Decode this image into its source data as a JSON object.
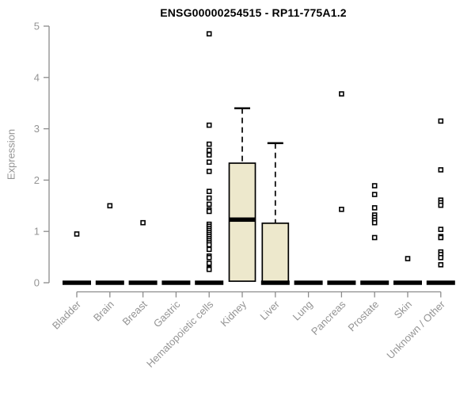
{
  "chart_data": {
    "type": "boxplot",
    "title": "ENSG00000254515 - RP11-775A1.2",
    "xlabel": "",
    "ylabel": "Expression",
    "ylim": [
      0,
      5
    ],
    "yticks": [
      0,
      1,
      2,
      3,
      4,
      5
    ],
    "grid": false,
    "legend": "none",
    "categories": [
      "Bladder",
      "Brain",
      "Breast",
      "Gastric",
      "Hematopoietic cells",
      "Kidney",
      "Liver",
      "Lung",
      "Pancreas",
      "Prostate",
      "Skin",
      "Unknown / Other"
    ],
    "boxes": [
      {
        "category": "Bladder",
        "whisker_low": 0,
        "q1": 0,
        "median": 0,
        "q3": 0,
        "whisker_high": 0,
        "outliers": [
          0.95
        ]
      },
      {
        "category": "Brain",
        "whisker_low": 0,
        "q1": 0,
        "median": 0,
        "q3": 0,
        "whisker_high": 0,
        "outliers": [
          1.5
        ]
      },
      {
        "category": "Breast",
        "whisker_low": 0,
        "q1": 0,
        "median": 0,
        "q3": 0,
        "whisker_high": 0,
        "outliers": [
          1.17
        ]
      },
      {
        "category": "Gastric",
        "whisker_low": 0,
        "q1": 0,
        "median": 0,
        "q3": 0,
        "whisker_high": 0,
        "outliers": []
      },
      {
        "category": "Hematopoietic cells",
        "whisker_low": 0,
        "q1": 0,
        "median": 0,
        "q3": 0,
        "whisker_high": 0,
        "outliers": [
          4.85,
          3.07,
          2.7,
          2.58,
          2.49,
          2.35,
          2.17,
          1.78,
          1.65,
          1.53,
          1.42,
          1.39,
          1.14,
          1.1,
          1.06,
          1.02,
          0.98,
          0.94,
          0.9,
          0.86,
          0.82,
          0.78,
          0.74,
          0.65,
          0.52,
          0.49,
          0.38,
          0.28,
          0.26
        ]
      },
      {
        "category": "Kidney",
        "whisker_low": 0.03,
        "q1": 0.03,
        "median": 1.23,
        "q3": 2.33,
        "whisker_high": 3.4,
        "outliers": []
      },
      {
        "category": "Liver",
        "whisker_low": 0,
        "q1": 0,
        "median": 0,
        "q3": 1.16,
        "whisker_high": 2.72,
        "outliers": []
      },
      {
        "category": "Lung",
        "whisker_low": 0,
        "q1": 0,
        "median": 0,
        "q3": 0,
        "whisker_high": 0,
        "outliers": []
      },
      {
        "category": "Pancreas",
        "whisker_low": 0,
        "q1": 0,
        "median": 0,
        "q3": 0,
        "whisker_high": 0,
        "outliers": [
          3.68,
          1.43
        ]
      },
      {
        "category": "Prostate",
        "whisker_low": 0,
        "q1": 0,
        "median": 0,
        "q3": 0,
        "whisker_high": 0,
        "outliers": [
          1.89,
          1.72,
          1.46,
          1.32,
          1.27,
          1.22,
          1.17,
          0.88
        ]
      },
      {
        "category": "Skin",
        "whisker_low": 0,
        "q1": 0,
        "median": 0,
        "q3": 0,
        "whisker_high": 0,
        "outliers": [
          0.47
        ]
      },
      {
        "category": "Unknown / Other",
        "whisker_low": 0,
        "q1": 0,
        "median": 0,
        "q3": 0,
        "whisker_high": 0,
        "outliers": [
          3.15,
          2.2,
          1.61,
          1.56,
          1.51,
          1.04,
          0.9,
          0.88,
          0.6,
          0.55,
          0.49,
          0.35
        ]
      }
    ],
    "colors": {
      "box_fill": "#EDE8CC",
      "box_border": "#000000",
      "median": "#000000",
      "whisker": "#000000",
      "outlier_border": "#000000",
      "outlier_fill": "#ffffff",
      "axis_line": "#8C8C8C",
      "axis_text": "#949494",
      "title_text": "#000000",
      "background": "#ffffff"
    }
  }
}
